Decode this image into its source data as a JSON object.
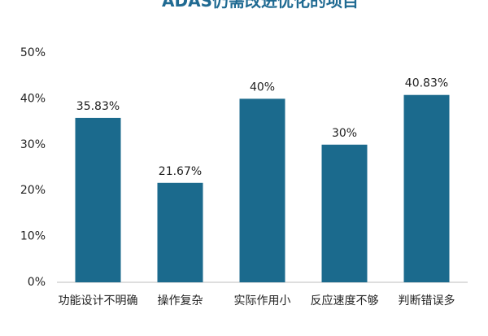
{
  "chart_data": {
    "type": "bar",
    "title": "ADAS仍需改进优化的项目",
    "categories": [
      "功能设计不明确",
      "操作复杂",
      "实际作用小",
      "反应速度不够",
      "判断错误多"
    ],
    "values": [
      35.83,
      21.67,
      40,
      30,
      40.83
    ],
    "data_labels": [
      "35.83%",
      "21.67%",
      "40%",
      "30%",
      "40.83%"
    ],
    "y_ticks": [
      "0%",
      "10%",
      "20%",
      "30%",
      "40%",
      "50%"
    ],
    "ylim": [
      0,
      50
    ],
    "xlabel": "",
    "ylabel": "",
    "grid": false,
    "legend": "none",
    "bar_color": "#1b6a8d"
  }
}
